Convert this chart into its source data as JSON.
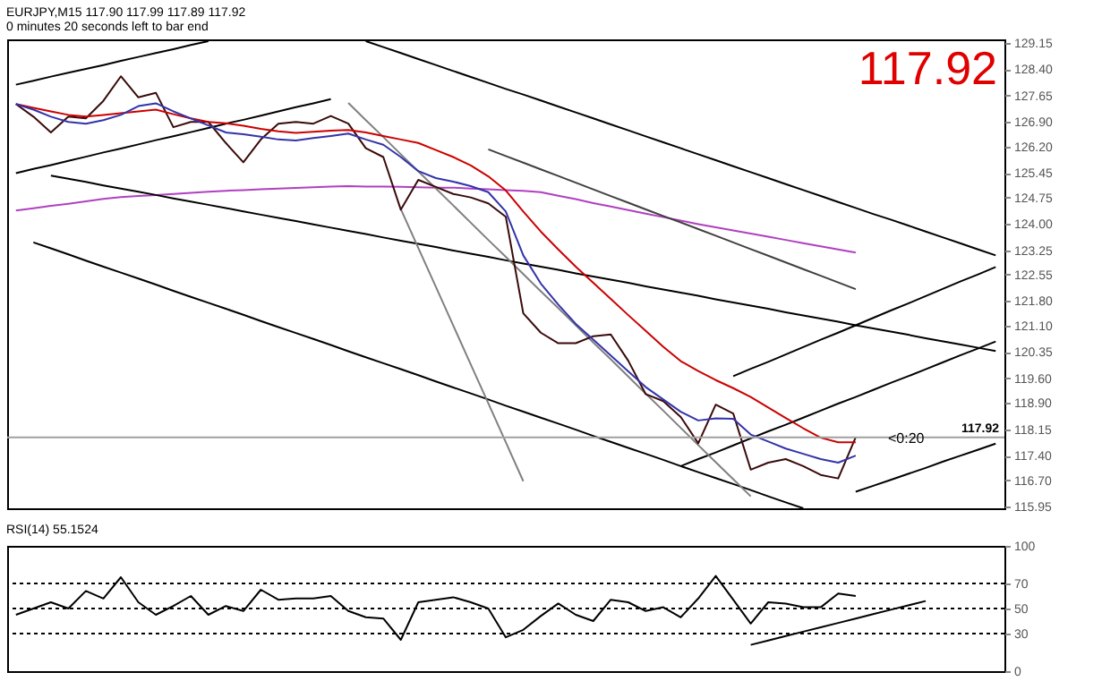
{
  "chart_data": [
    {
      "type": "line",
      "title": "EURJPY,M15  117.90 117.99 117.89 117.92",
      "subtitle": "0 minutes 20 seconds left to bar end",
      "annotations": [
        "117.92",
        {
          "text": "<0:20",
          "y": 117.92
        }
      ],
      "categories": [
        null,
        null,
        null,
        null,
        null,
        null,
        null,
        null,
        null,
        null,
        null,
        null,
        null,
        null,
        null,
        null,
        null,
        null,
        null,
        null,
        null,
        null,
        null,
        null,
        null,
        null,
        null,
        null,
        null,
        null,
        null,
        null,
        null,
        null,
        null,
        null,
        null,
        null,
        null,
        null,
        null,
        null,
        null,
        null,
        null,
        null,
        null,
        null,
        null,
        null,
        null,
        null,
        null,
        null,
        null,
        null,
        null
      ],
      "ylim": [
        115.9,
        129.25
      ],
      "yticks": [
        {
          "value": 129.15,
          "label": "129.15"
        },
        {
          "value": 128.4,
          "label": "128.40"
        },
        {
          "value": 127.65,
          "label": "127.65"
        },
        {
          "value": 126.9,
          "label": "126.90"
        },
        {
          "value": 126.2,
          "label": "126.20"
        },
        {
          "value": 125.45,
          "label": "125.45"
        },
        {
          "value": 124.75,
          "label": "124.75"
        },
        {
          "value": 124.0,
          "label": "124.00"
        },
        {
          "value": 123.25,
          "label": "123.25"
        },
        {
          "value": 122.55,
          "label": "122.55"
        },
        {
          "value": 121.8,
          "label": "121.80"
        },
        {
          "value": 121.1,
          "label": "121.10"
        },
        {
          "value": 120.35,
          "label": "120.35"
        },
        {
          "value": 119.6,
          "label": "119.60"
        },
        {
          "value": 118.9,
          "label": "118.90"
        },
        {
          "value": 118.15,
          "label": "118.15"
        },
        {
          "value": 117.4,
          "label": "117.40"
        },
        {
          "value": 116.7,
          "label": "116.70"
        },
        {
          "value": 115.95,
          "label": "115.95"
        }
      ],
      "tick_labels": "y",
      "ref_lines": [
        {
          "axis": "y",
          "value": 117.92,
          "label": "117.92",
          "color": "#a0a0a0"
        }
      ],
      "series": [
        {
          "color": "#b040c0",
          "values": [
            124.38,
            124.44,
            124.51,
            124.57,
            124.64,
            124.71,
            124.76,
            124.79,
            124.82,
            124.85,
            124.88,
            124.91,
            124.94,
            124.96,
            124.98,
            125.0,
            125.02,
            125.04,
            125.06,
            125.07,
            125.06,
            125.06,
            125.05,
            125.04,
            125.03,
            125.03,
            125.0,
            124.98,
            124.96,
            124.94,
            124.9,
            124.8,
            124.7,
            124.59,
            124.49,
            124.39,
            124.29,
            124.19,
            124.09,
            123.99,
            123.9,
            123.81,
            123.72,
            123.63,
            123.54,
            123.45,
            123.36,
            123.27,
            123.18,
            null,
            null,
            null,
            null,
            null,
            null,
            null,
            null
          ]
        },
        {
          "color": "#000000",
          "values": [
            null,
            123.47,
            123.3,
            123.13,
            122.95,
            122.78,
            122.61,
            122.44,
            122.27,
            122.09,
            121.92,
            121.75,
            121.58,
            121.41,
            121.23,
            121.06,
            120.89,
            120.72,
            120.55,
            120.37,
            120.2,
            120.03,
            119.86,
            119.69,
            119.51,
            119.34,
            119.17,
            119.0,
            118.82,
            118.65,
            118.48,
            118.31,
            118.14,
            117.96,
            117.79,
            117.62,
            117.45,
            117.28,
            117.1,
            116.93,
            116.76,
            116.59,
            116.42,
            116.24,
            116.07,
            115.9,
            null,
            null,
            null,
            null,
            null,
            null,
            null,
            null,
            null,
            null,
            null
          ]
        },
        {
          "color": "#000000",
          "values": [
            null,
            null,
            125.37,
            125.28,
            125.19,
            125.09,
            125.0,
            124.91,
            124.82,
            124.72,
            124.63,
            124.54,
            124.45,
            124.35,
            124.26,
            124.17,
            124.08,
            123.98,
            123.89,
            123.8,
            123.71,
            123.61,
            123.52,
            123.43,
            123.34,
            123.24,
            123.15,
            123.06,
            122.96,
            122.87,
            122.78,
            122.69,
            122.59,
            122.5,
            122.41,
            122.32,
            122.22,
            122.13,
            122.04,
            121.95,
            121.85,
            121.76,
            121.67,
            121.58,
            121.48,
            121.39,
            121.3,
            121.21,
            121.11,
            121.02,
            120.93,
            120.84,
            120.74,
            120.65,
            120.56,
            120.47,
            120.38
          ]
        },
        {
          "color": "#000000",
          "values": [
            null,
            null,
            null,
            null,
            null,
            null,
            null,
            null,
            null,
            null,
            null,
            null,
            null,
            null,
            null,
            null,
            null,
            null,
            null,
            null,
            129.2,
            129.03,
            128.86,
            128.69,
            128.52,
            128.35,
            128.18,
            128.01,
            127.84,
            127.68,
            127.51,
            127.34,
            127.17,
            127.0,
            126.83,
            126.66,
            126.49,
            126.32,
            126.15,
            125.98,
            125.81,
            125.64,
            125.47,
            125.3,
            125.13,
            124.96,
            124.79,
            124.62,
            124.45,
            124.28,
            124.12,
            123.95,
            123.78,
            123.61,
            123.44,
            123.27,
            123.1
          ]
        },
        {
          "color": "#000000",
          "values": [
            125.44,
            125.56,
            125.67,
            125.79,
            125.91,
            126.03,
            126.14,
            126.26,
            126.38,
            126.49,
            126.61,
            126.73,
            126.85,
            126.96,
            127.08,
            127.2,
            127.32,
            127.43,
            127.55,
            null,
            null,
            null,
            null,
            null,
            null,
            null,
            null,
            null,
            null,
            null,
            null,
            null,
            null,
            null,
            null,
            null,
            null,
            null,
            null,
            null,
            null,
            null,
            null,
            null,
            null,
            null,
            null,
            null,
            null,
            null,
            null,
            null,
            null,
            null,
            null,
            null,
            null
          ]
        },
        {
          "color": "#000000",
          "values": [
            127.96,
            128.07,
            128.19,
            128.3,
            128.41,
            128.52,
            128.64,
            128.75,
            128.86,
            128.97,
            129.09,
            129.2,
            null,
            null,
            null,
            null,
            null,
            null,
            null,
            null,
            null,
            null,
            null,
            null,
            null,
            null,
            null,
            null,
            null,
            null,
            null,
            null,
            null,
            null,
            null,
            null,
            null,
            null,
            null,
            null,
            null,
            null,
            null,
            null,
            null,
            null,
            null,
            null,
            null,
            null,
            null,
            null,
            null,
            null,
            null,
            null,
            null
          ]
        },
        {
          "color": "#000000",
          "values": [
            null,
            null,
            null,
            null,
            null,
            null,
            null,
            null,
            null,
            null,
            null,
            null,
            null,
            null,
            null,
            null,
            null,
            null,
            null,
            null,
            null,
            null,
            null,
            null,
            null,
            null,
            null,
            null,
            null,
            null,
            null,
            null,
            null,
            null,
            null,
            null,
            null,
            null,
            null,
            null,
            null,
            119.66,
            119.87,
            120.07,
            120.28,
            120.49,
            120.7,
            120.9,
            121.11,
            121.32,
            121.53,
            121.73,
            121.94,
            122.15,
            122.36,
            122.56,
            122.77
          ]
        },
        {
          "color": "#000000",
          "values": [
            null,
            null,
            null,
            null,
            null,
            null,
            null,
            null,
            null,
            null,
            null,
            null,
            null,
            null,
            null,
            null,
            null,
            null,
            null,
            null,
            null,
            null,
            null,
            null,
            null,
            null,
            null,
            null,
            null,
            null,
            null,
            null,
            null,
            null,
            null,
            null,
            null,
            null,
            117.1,
            117.3,
            117.49,
            117.69,
            117.89,
            118.09,
            118.28,
            118.48,
            118.68,
            118.88,
            119.07,
            119.27,
            119.47,
            119.66,
            119.86,
            120.06,
            120.26,
            120.45,
            120.65
          ]
        },
        {
          "color": "#000000",
          "values": [
            null,
            null,
            null,
            null,
            null,
            null,
            null,
            null,
            null,
            null,
            null,
            null,
            null,
            null,
            null,
            null,
            null,
            null,
            null,
            null,
            null,
            null,
            null,
            null,
            null,
            null,
            null,
            null,
            null,
            null,
            null,
            null,
            null,
            null,
            null,
            null,
            null,
            null,
            null,
            null,
            null,
            null,
            null,
            null,
            null,
            null,
            null,
            null,
            116.37,
            116.54,
            116.71,
            116.88,
            117.05,
            117.23,
            117.4,
            117.57,
            117.74
          ]
        },
        {
          "color": "#808080",
          "values": [
            null,
            null,
            null,
            null,
            null,
            null,
            null,
            null,
            null,
            null,
            null,
            null,
            null,
            null,
            null,
            null,
            null,
            null,
            null,
            null,
            null,
            null,
            124.42,
            123.31,
            122.21,
            121.1,
            119.99,
            118.89,
            117.78,
            116.67,
            null,
            null,
            null,
            null,
            null,
            null,
            null,
            null,
            null,
            null,
            null,
            null,
            null,
            null,
            null,
            null,
            null,
            null,
            null,
            null,
            null,
            null,
            null,
            null,
            null,
            null,
            null
          ]
        },
        {
          "color": "#808080",
          "values": [
            null,
            null,
            null,
            null,
            null,
            null,
            null,
            null,
            null,
            null,
            null,
            null,
            null,
            null,
            null,
            null,
            null,
            null,
            null,
            127.44,
            126.95,
            126.47,
            125.98,
            125.49,
            125.01,
            124.52,
            124.03,
            123.54,
            123.06,
            122.57,
            122.08,
            121.6,
            121.11,
            120.62,
            120.14,
            119.65,
            119.16,
            118.68,
            118.19,
            117.7,
            117.21,
            116.73,
            116.24,
            null,
            null,
            null,
            null,
            null,
            null,
            null,
            null,
            null,
            null,
            null,
            null,
            null,
            null
          ]
        },
        {
          "color": "#404040",
          "values": [
            null,
            null,
            null,
            null,
            null,
            null,
            null,
            null,
            null,
            null,
            null,
            null,
            null,
            null,
            null,
            null,
            null,
            null,
            null,
            null,
            null,
            null,
            null,
            null,
            null,
            null,
            null,
            126.12,
            125.93,
            125.74,
            125.55,
            125.36,
            125.17,
            124.98,
            124.79,
            124.6,
            124.41,
            124.22,
            124.04,
            123.85,
            123.66,
            123.47,
            123.28,
            123.09,
            122.9,
            122.71,
            122.52,
            122.33,
            122.14,
            null,
            null,
            null,
            null,
            null,
            null,
            null,
            null
          ]
        },
        {
          "color": "#3a0a0a",
          "values": [
            127.41,
            127.05,
            126.6,
            127.05,
            127.0,
            127.5,
            128.2,
            127.6,
            127.73,
            126.75,
            126.9,
            126.9,
            126.3,
            125.75,
            126.4,
            126.85,
            126.9,
            126.85,
            127.07,
            126.85,
            126.15,
            125.9,
            124.4,
            125.25,
            125.05,
            124.85,
            124.75,
            124.58,
            124.2,
            121.45,
            120.9,
            120.6,
            120.6,
            120.8,
            120.85,
            120.1,
            119.15,
            118.95,
            118.5,
            117.75,
            118.85,
            118.6,
            117.0,
            117.2,
            117.3,
            117.1,
            116.85,
            116.75,
            117.92,
            null,
            null,
            null,
            null,
            null,
            null,
            null,
            null
          ]
        },
        {
          "color": "#cc0000",
          "values": [
            127.41,
            127.3,
            127.2,
            127.1,
            127.05,
            127.1,
            127.15,
            127.2,
            127.25,
            127.12,
            127.0,
            126.9,
            126.86,
            126.79,
            126.7,
            126.63,
            126.59,
            126.62,
            126.65,
            126.67,
            126.6,
            126.5,
            126.4,
            126.3,
            126.1,
            125.9,
            125.66,
            125.35,
            124.95,
            124.35,
            123.78,
            123.27,
            122.78,
            122.32,
            121.86,
            121.4,
            120.95,
            120.5,
            120.09,
            119.81,
            119.55,
            119.32,
            119.07,
            118.77,
            118.47,
            118.18,
            117.91,
            117.78,
            117.78,
            null,
            null,
            null,
            null,
            null,
            null,
            null,
            null
          ]
        },
        {
          "color": "#3333aa",
          "values": [
            127.41,
            127.25,
            127.05,
            126.9,
            126.85,
            126.95,
            127.1,
            127.35,
            127.43,
            127.2,
            127.0,
            126.8,
            126.6,
            126.55,
            126.48,
            126.4,
            126.37,
            126.44,
            126.5,
            126.57,
            126.4,
            126.25,
            125.9,
            125.5,
            125.3,
            125.2,
            125.07,
            124.9,
            124.35,
            123.1,
            122.3,
            121.7,
            121.15,
            120.7,
            120.25,
            119.8,
            119.35,
            119.0,
            118.65,
            118.4,
            118.46,
            118.45,
            118.0,
            117.8,
            117.6,
            117.45,
            117.3,
            117.2,
            117.4,
            null,
            null,
            null,
            null,
            null,
            null,
            null,
            null
          ]
        }
      ]
    },
    {
      "type": "line",
      "title": "RSI(14) 55.1524",
      "categories": [
        null,
        null,
        null,
        null,
        null,
        null,
        null,
        null,
        null,
        null,
        null,
        null,
        null,
        null,
        null,
        null,
        null,
        null,
        null,
        null,
        null,
        null,
        null,
        null,
        null,
        null,
        null,
        null,
        null,
        null,
        null,
        null,
        null,
        null,
        null,
        null,
        null,
        null,
        null,
        null,
        null,
        null,
        null,
        null,
        null,
        null,
        null,
        null,
        null,
        null,
        null,
        null,
        null,
        null,
        null,
        null,
        null
      ],
      "ylim": [
        0,
        100
      ],
      "yticks": [
        0,
        30,
        50,
        70,
        100
      ],
      "tick_labels": "y",
      "ref_lines": [
        {
          "axis": "y",
          "value": 70,
          "color": "#000000",
          "line_style": "dotted"
        },
        {
          "axis": "y",
          "value": 50,
          "color": "#000000",
          "line_style": "dotted"
        },
        {
          "axis": "y",
          "value": 30,
          "color": "#000000",
          "line_style": "dotted"
        }
      ],
      "series": [
        {
          "color": "#000000",
          "values": [
            45,
            50,
            55,
            50,
            64,
            58,
            75,
            55,
            45,
            52,
            60,
            45,
            52,
            48,
            65,
            57,
            58,
            58,
            60,
            48,
            43,
            42,
            25,
            55,
            57,
            59,
            55,
            50,
            27,
            33,
            44,
            54,
            45,
            40,
            57,
            55,
            48,
            51,
            43,
            58,
            76,
            57,
            38,
            55,
            54,
            51,
            51,
            62,
            60,
            null,
            null,
            null,
            null,
            null,
            null,
            null,
            null
          ]
        },
        {
          "color": "#000000",
          "values": [
            null,
            null,
            null,
            null,
            null,
            null,
            null,
            null,
            null,
            null,
            null,
            null,
            null,
            null,
            null,
            null,
            null,
            null,
            null,
            null,
            null,
            null,
            null,
            null,
            null,
            null,
            null,
            null,
            null,
            null,
            null,
            null,
            null,
            null,
            null,
            null,
            null,
            null,
            null,
            null,
            null,
            null,
            21,
            24.5,
            28,
            31.5,
            35,
            38.5,
            42,
            45.5,
            49,
            52.5,
            56,
            null,
            null,
            null,
            null
          ]
        }
      ]
    }
  ]
}
